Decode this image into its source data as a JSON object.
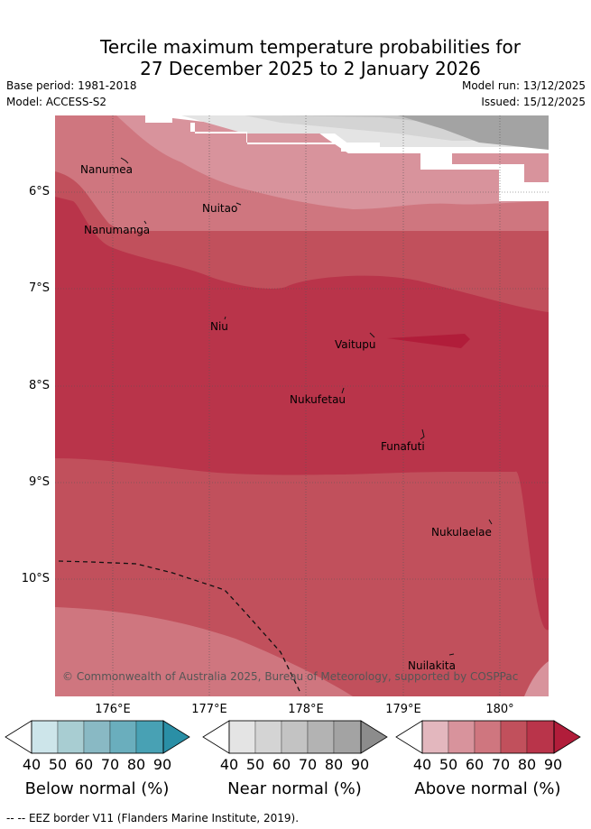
{
  "title": {
    "line1": "Tercile maximum temperature probabilities for",
    "line2": "27 December 2025 to 2 January 2026"
  },
  "meta": {
    "base_period": "Base period: 1981-2018",
    "model": "Model: ACCESS-S2",
    "model_run": "Model run: 13/12/2025",
    "issued": "Issued: 15/12/2025"
  },
  "map": {
    "lat_labels": [
      "6°S",
      "7°S",
      "8°S",
      "9°S",
      "10°S"
    ],
    "lon_labels": [
      "176°E",
      "177°E",
      "178°E",
      "179°E",
      "180°"
    ],
    "places": [
      {
        "name": "Nanumea"
      },
      {
        "name": "Nuitao"
      },
      {
        "name": "Nanumanga"
      },
      {
        "name": "Niu"
      },
      {
        "name": "Vaitupu"
      },
      {
        "name": "Nukufetau"
      },
      {
        "name": "Funafuti"
      },
      {
        "name": "Nukulaelae"
      },
      {
        "name": "Nuilakita"
      }
    ],
    "copyright": "© Commonwealth of Australia 2025, Bureau of Meteorology, supported by COSPPac"
  },
  "colorbars": [
    {
      "caption": "Below normal (%)",
      "ticks": [
        "40",
        "50",
        "60",
        "70",
        "80",
        "90"
      ],
      "colors": [
        "#cde5ea",
        "#a8cdd2",
        "#89b9c4",
        "#6aaebd",
        "#48a1b4",
        "#2a8fa6"
      ]
    },
    {
      "caption": "Near normal (%)",
      "ticks": [
        "40",
        "50",
        "60",
        "70",
        "80",
        "90"
      ],
      "colors": [
        "#e4e4e4",
        "#d4d4d4",
        "#c3c3c3",
        "#b3b3b3",
        "#a3a3a3",
        "#8c8c8c"
      ]
    },
    {
      "caption": "Above normal (%)",
      "ticks": [
        "40",
        "50",
        "60",
        "70",
        "80",
        "90"
      ],
      "colors": [
        "#e3b7be",
        "#d8939c",
        "#cf767f",
        "#c1505c",
        "#b9344a",
        "#b11d3a"
      ]
    }
  ],
  "legend": {
    "eez": "-- EEZ border V11 (Flanders Marine Institute, 2019)."
  }
}
